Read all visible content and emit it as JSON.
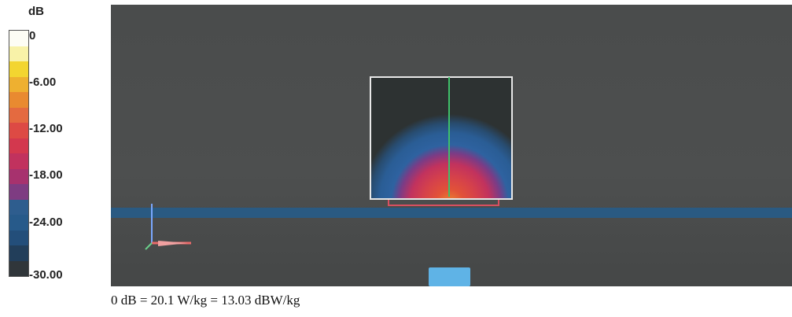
{
  "legend": {
    "unit": "dB",
    "ticks": [
      "0",
      "-6.00",
      "-12.00",
      "-18.00",
      "-24.00",
      "-30.00"
    ],
    "colors": [
      "#fdfdf4",
      "#f8f2a8",
      "#f3d530",
      "#eeb030",
      "#e98a30",
      "#e46a40",
      "#dd4a44",
      "#d3384e",
      "#c1325e",
      "#a7326e",
      "#7e3c82",
      "#2e5d8e",
      "#275a8a",
      "#234e7a",
      "#223e5a",
      "#30363a"
    ]
  },
  "caption": "0 dB = 20.1 W/kg = 13.03 dBW/kg",
  "colors": {
    "background": "#4b4d4d",
    "phantom_band": "#2a5a82",
    "box_border": "#e8e8e8",
    "center_line": "#3fc06a",
    "antenna": "#d85060",
    "base_marker": "#5fb3e6"
  }
}
